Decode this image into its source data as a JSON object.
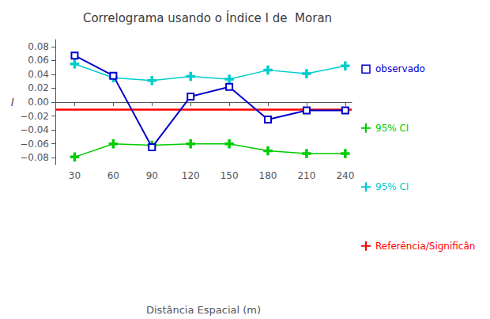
{
  "chart_data": {
    "type": "line",
    "title": "Correlograma usando o Índice I de  Moran",
    "xlabel": "Distância Espacial (m)",
    "ylabel": "I",
    "x": [
      30,
      60,
      90,
      120,
      150,
      180,
      210,
      240
    ],
    "xlim": [
      15,
      245
    ],
    "ylim": [
      -0.09,
      0.09
    ],
    "xticks": [
      30,
      60,
      90,
      120,
      150,
      180,
      210,
      240
    ],
    "yticks": [
      {
        "value": -0.08,
        "label": "−0.08"
      },
      {
        "value": -0.06,
        "label": "−0.06"
      },
      {
        "value": -0.04,
        "label": "−0.04"
      },
      {
        "value": -0.02,
        "label": "−0.02"
      },
      {
        "value": 0,
        "label": "0.00"
      },
      0.02,
      0.04,
      0.06,
      0.08
    ],
    "grid": false,
    "legend": "right",
    "series": [
      {
        "name": "observado",
        "color": "#0000cc",
        "marker": "square",
        "values": [
          0.067,
          0.038,
          -0.065,
          0.008,
          0.022,
          -0.025,
          -0.012,
          -0.012
        ]
      },
      {
        "name": "95% CI",
        "color": "#00cc00",
        "marker": "plus",
        "values": [
          -0.079,
          -0.06,
          -0.062,
          -0.06,
          -0.06,
          -0.07,
          -0.074,
          -0.074
        ]
      },
      {
        "name": "95% CI",
        "color": "#00cccc",
        "marker": "plus",
        "values": [
          0.055,
          0.035,
          0.031,
          0.037,
          0.033,
          0.046,
          0.041,
          0.052
        ]
      },
      {
        "name": "Referência/Significân",
        "color": "#ff0000",
        "marker": "plus",
        "type": "hline",
        "value": -0.015
      }
    ]
  }
}
